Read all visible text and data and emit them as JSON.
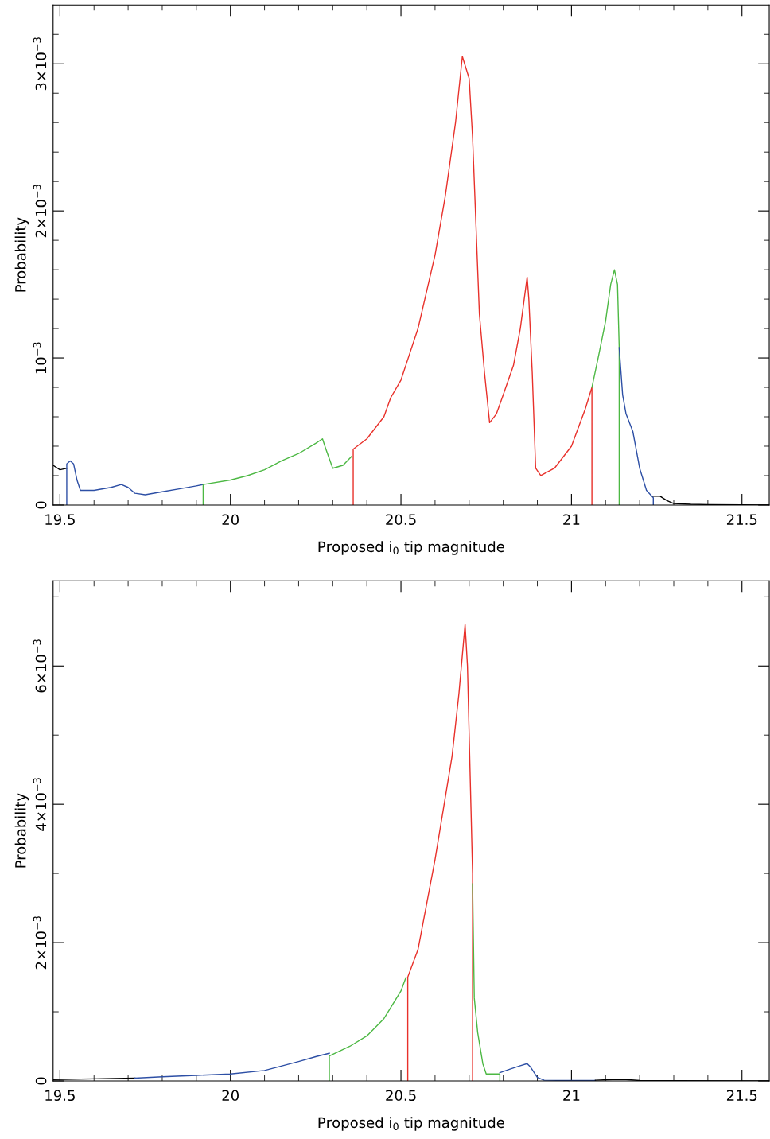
{
  "chart_data": [
    {
      "type": "line",
      "xlabel": "Proposed i$_{0}$ tip magnitude",
      "ylabel": "Probability",
      "xlim": [
        19.48,
        21.58
      ],
      "ylim": [
        0,
        0.0034
      ],
      "xticks": [
        19.5,
        {
          "value": 19.6,
          "label": null
        },
        {
          "value": 19.7,
          "label": null
        },
        {
          "value": 19.8,
          "label": null
        },
        {
          "value": 19.9,
          "label": null
        },
        20,
        {
          "value": 20.1,
          "label": null
        },
        {
          "value": 20.2,
          "label": null
        },
        {
          "value": 20.3,
          "label": null
        },
        {
          "value": 20.4,
          "label": null
        },
        20.5,
        {
          "value": 20.6,
          "label": null
        },
        {
          "value": 20.7,
          "label": null
        },
        {
          "value": 20.8,
          "label": null
        },
        {
          "value": 20.9,
          "label": null
        },
        21,
        {
          "value": 21.1,
          "label": null
        },
        {
          "value": 21.2,
          "label": null
        },
        {
          "value": 21.3,
          "label": null
        },
        {
          "value": 21.4,
          "label": null
        },
        21.5
      ],
      "yticks": [
        0,
        {
          "value": 0.0002,
          "label": null
        },
        {
          "value": 0.0004,
          "label": null
        },
        {
          "value": 0.0006,
          "label": null
        },
        {
          "value": 0.0008,
          "label": null
        },
        {
          "value": 0.001,
          "label": "10$^{−3}$"
        },
        {
          "value": 0.0012,
          "label": null
        },
        {
          "value": 0.0014,
          "label": null
        },
        {
          "value": 0.0016,
          "label": null
        },
        {
          "value": 0.0018,
          "label": null
        },
        {
          "value": 0.002,
          "label": "2×10$^{−3}$"
        },
        {
          "value": 0.0022,
          "label": null
        },
        {
          "value": 0.0024,
          "label": null
        },
        {
          "value": 0.0026,
          "label": null
        },
        {
          "value": 0.0028,
          "label": null
        },
        {
          "value": 0.003,
          "label": "3×10$^{−3}$"
        },
        {
          "value": 0.0032,
          "label": null
        }
      ],
      "series": [
        {
          "color": "#000000",
          "x": [
            19.48,
            19.5,
            19.52
          ],
          "values": [
            0.00027,
            0.00024,
            0.00025
          ]
        },
        {
          "color": "#2d4fa5",
          "x": [
            19.52,
            19.52,
            19.53,
            19.54,
            19.55,
            19.56,
            19.6,
            19.65,
            19.68,
            19.7,
            19.72,
            19.75,
            19.8,
            19.85,
            19.9,
            19.92
          ],
          "values": [
            0,
            0.00028,
            0.0003,
            0.00028,
            0.00017,
            0.0001,
            0.0001,
            0.00012,
            0.00014,
            0.00012,
            8e-05,
            7e-05,
            9e-05,
            0.00011,
            0.00013,
            0.00014
          ]
        },
        {
          "color": "#4cb843",
          "x": [
            19.92,
            19.92,
            20.0,
            20.05,
            20.1,
            20.15,
            20.2,
            20.25,
            20.27,
            20.28,
            20.3,
            20.33,
            20.355
          ],
          "values": [
            0,
            0.00014,
            0.00017,
            0.0002,
            0.00024,
            0.0003,
            0.00035,
            0.00042,
            0.00045,
            0.00038,
            0.00025,
            0.00027,
            0.00033
          ]
        },
        {
          "color": "#e8302a",
          "x": [
            20.36,
            20.36,
            20.4,
            20.45,
            20.47,
            20.5,
            20.55,
            20.6,
            20.63,
            20.66,
            20.68,
            20.7,
            20.71,
            20.72,
            20.73,
            20.745,
            20.76,
            20.78,
            20.8,
            20.83,
            20.85,
            20.87,
            20.875,
            20.885,
            20.895,
            20.91,
            20.95,
            21.0,
            21.04,
            21.06,
            21.06
          ],
          "values": [
            0,
            0.00038,
            0.00045,
            0.0006,
            0.00073,
            0.00085,
            0.0012,
            0.0017,
            0.0021,
            0.0026,
            0.00305,
            0.0029,
            0.0025,
            0.0019,
            0.0013,
            0.0009,
            0.00056,
            0.00062,
            0.00075,
            0.00095,
            0.0012,
            0.00155,
            0.0014,
            0.0009,
            0.00025,
            0.0002,
            0.00025,
            0.0004,
            0.00065,
            0.0008,
            0
          ]
        },
        {
          "color": "#4cb843",
          "x": [
            21.06,
            21.08,
            21.1,
            21.115,
            21.126,
            21.135,
            21.14,
            21.14
          ],
          "values": [
            0.0008,
            0.00102,
            0.00125,
            0.0015,
            0.0016,
            0.0015,
            0.00107,
            0
          ]
        },
        {
          "color": "#2d4fa5",
          "x": [
            21.14,
            21.15,
            21.16,
            21.18,
            21.2,
            21.22,
            21.24,
            21.24
          ],
          "values": [
            0.00107,
            0.00075,
            0.00062,
            0.0005,
            0.00025,
            0.0001,
            5e-05,
            0
          ]
        },
        {
          "color": "#000000",
          "x": [
            21.24,
            21.26,
            21.28,
            21.3,
            21.35,
            21.4,
            21.5,
            21.58
          ],
          "values": [
            6e-05,
            6e-05,
            3e-05,
            1e-05,
            5e-06,
            3e-06,
            1e-06,
            0
          ]
        }
      ]
    },
    {
      "type": "line",
      "xlabel": "Proposed i$_{0}$ tip magnitude",
      "ylabel": "Probability",
      "xlim": [
        19.48,
        21.58
      ],
      "ylim": [
        0,
        0.00723
      ],
      "xticks": [
        19.5,
        {
          "value": 19.6,
          "label": null
        },
        {
          "value": 19.7,
          "label": null
        },
        {
          "value": 19.8,
          "label": null
        },
        {
          "value": 19.9,
          "label": null
        },
        20,
        {
          "value": 20.1,
          "label": null
        },
        {
          "value": 20.2,
          "label": null
        },
        {
          "value": 20.3,
          "label": null
        },
        {
          "value": 20.4,
          "label": null
        },
        20.5,
        {
          "value": 20.6,
          "label": null
        },
        {
          "value": 20.7,
          "label": null
        },
        {
          "value": 20.8,
          "label": null
        },
        {
          "value": 20.9,
          "label": null
        },
        21,
        {
          "value": 21.1,
          "label": null
        },
        {
          "value": 21.2,
          "label": null
        },
        {
          "value": 21.3,
          "label": null
        },
        {
          "value": 21.4,
          "label": null
        },
        21.5
      ],
      "yticks": [
        0,
        {
          "value": 0.001,
          "label": null
        },
        {
          "value": 0.002,
          "label": "2×10$^{−3}$"
        },
        {
          "value": 0.003,
          "label": null
        },
        {
          "value": 0.004,
          "label": "4×10$^{−3}$"
        },
        {
          "value": 0.005,
          "label": null
        },
        {
          "value": 0.006,
          "label": "6×10$^{−3}$"
        },
        {
          "value": 0.007,
          "label": null
        }
      ],
      "series": [
        {
          "color": "#000000",
          "x": [
            19.48,
            19.6,
            19.72
          ],
          "values": [
            2e-05,
            3e-05,
            4e-05
          ]
        },
        {
          "color": "#2d4fa5",
          "x": [
            19.72,
            19.8,
            19.9,
            20.0,
            20.1,
            20.2,
            20.25,
            20.29
          ],
          "values": [
            4e-05,
            6e-05,
            8e-05,
            0.0001,
            0.00015,
            0.00028,
            0.00035,
            0.0004
          ]
        },
        {
          "color": "#4cb843",
          "x": [
            20.29,
            20.29,
            20.35,
            20.4,
            20.45,
            20.5,
            20.515
          ],
          "values": [
            0,
            0.00036,
            0.0005,
            0.00065,
            0.0009,
            0.0013,
            0.0015
          ]
        },
        {
          "color": "#e8302a",
          "x": [
            20.52,
            20.52,
            20.55,
            20.6,
            20.65,
            20.67,
            20.688,
            20.695,
            20.7,
            20.71,
            20.71
          ],
          "values": [
            0,
            0.0015,
            0.0019,
            0.0032,
            0.0047,
            0.0056,
            0.0066,
            0.006,
            0.005,
            0.003,
            0
          ]
        },
        {
          "color": "#4cb843",
          "x": [
            20.71,
            20.715,
            20.725,
            20.74,
            20.75,
            20.77,
            20.79,
            20.79
          ],
          "values": [
            0.00285,
            0.0012,
            0.0007,
            0.00025,
            0.0001,
            0.0001,
            0.0001,
            0
          ]
        },
        {
          "color": "#2d4fa5",
          "x": [
            20.79,
            20.82,
            20.85,
            20.87,
            20.88,
            20.9,
            20.92,
            21.0,
            21.07
          ],
          "values": [
            0.00012,
            0.00017,
            0.00022,
            0.00025,
            0.0002,
            5e-05,
            1e-05,
            5e-06,
            5e-06
          ]
        },
        {
          "color": "#000000",
          "x": [
            21.07,
            21.12,
            21.16,
            21.2,
            21.3,
            21.58
          ],
          "values": [
            1e-05,
            2e-05,
            2e-05,
            5e-06,
            2e-06,
            0
          ]
        }
      ]
    }
  ]
}
